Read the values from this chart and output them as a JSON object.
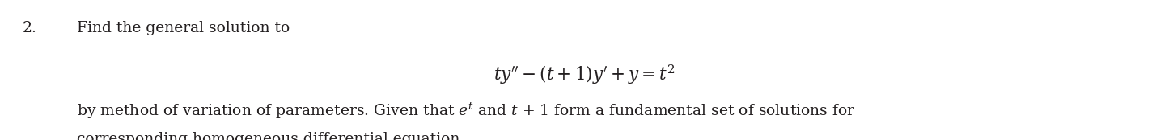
{
  "number": "2.",
  "line1": "Find the general solution to",
  "equation_math": "$ty'' - (t + 1)y' + y = t^{2}$",
  "line2_plain_before": "by method of variation of parameters. Given that ",
  "line2_et": "$e^{t}$",
  "line2_middle": " and ",
  "line2_t": "$t$",
  "line2_end": " + 1 form a fundamental set of solutions for",
  "line3": "corresponding homogeneous differential equation.",
  "bg_color": "#ffffff",
  "text_color": "#231f20",
  "font_size_main": 13.5,
  "font_size_eq": 15.5,
  "fig_width": 14.45,
  "fig_height": 1.74,
  "dpi": 100
}
